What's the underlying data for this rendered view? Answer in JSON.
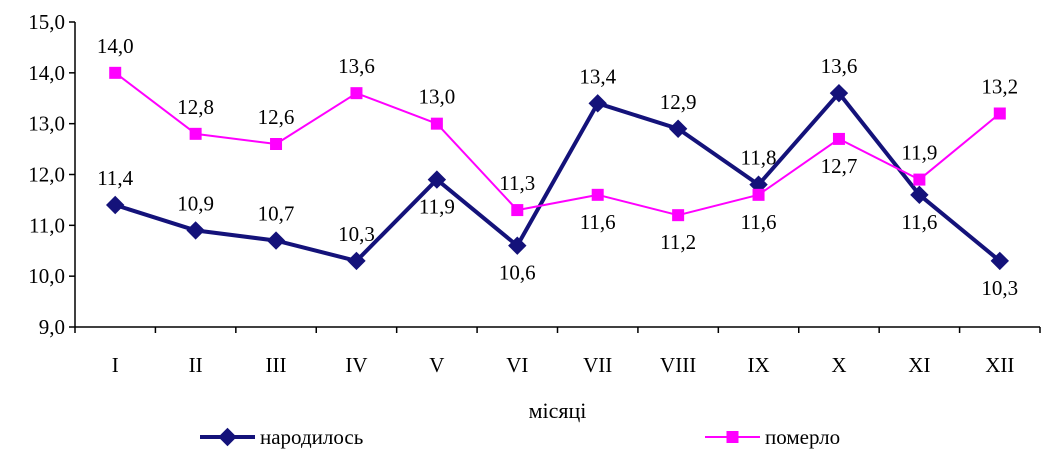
{
  "chart_data": {
    "type": "line",
    "categories": [
      "I",
      "II",
      "III",
      "IV",
      "V",
      "VI",
      "VII",
      "VIII",
      "IX",
      "X",
      "XI",
      "XII"
    ],
    "series": [
      {
        "name": "народилось",
        "color": "#14127a",
        "marker": "diamond",
        "values": [
          11.4,
          10.9,
          10.7,
          10.3,
          11.9,
          10.6,
          13.4,
          12.9,
          11.8,
          13.6,
          11.6,
          10.3
        ],
        "labels": [
          "11,4",
          "10,9",
          "10,7",
          "10,3",
          "11,9",
          "10,6",
          "13,4",
          "12,9",
          "11,8",
          "13,6",
          "11,6",
          "10,3"
        ]
      },
      {
        "name": "померло",
        "color": "#ff00ff",
        "marker": "square",
        "values": [
          14.0,
          12.8,
          12.6,
          13.6,
          13.0,
          11.3,
          11.6,
          11.2,
          11.6,
          12.7,
          11.9,
          13.2
        ],
        "labels": [
          "14,0",
          "12,8",
          "12,6",
          "13,6",
          "13,0",
          "11,3",
          "11,6",
          "11,2",
          "11,6",
          "12,7",
          "11,9",
          "13,2"
        ]
      }
    ],
    "xlabel": "місяці",
    "ylabel": "",
    "ylim": [
      9.0,
      15.0
    ],
    "yticks": [
      "9,0",
      "10,0",
      "11,0",
      "12,0",
      "13,0",
      "14,0",
      "15,0"
    ],
    "grid": false,
    "legend_position": "bottom"
  }
}
